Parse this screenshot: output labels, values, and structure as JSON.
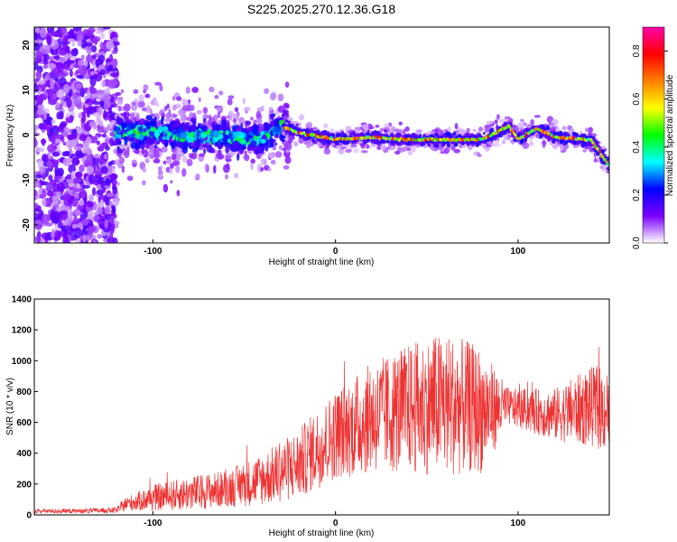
{
  "title": "S225.2025.270.12.36.G18",
  "chart_data": [
    {
      "type": "heatmap",
      "xlabel": "Height of straight line (km)",
      "ylabel": "Frequency (Hz)",
      "xlim": [
        -165,
        150
      ],
      "ylim": [
        -24,
        24
      ],
      "xticks": [
        -100,
        0,
        100
      ],
      "yticks": [
        -20,
        -10,
        0,
        10,
        20
      ],
      "colorbar": {
        "label": "Normalized spectral amplitude",
        "range": [
          0,
          0.9
        ],
        "ticks": [
          0.0,
          0.2,
          0.4,
          0.6,
          0.8
        ],
        "colors": [
          "#ffffff",
          "#7b00ff",
          "#0000ff",
          "#00ffff",
          "#00ff00",
          "#ffff00",
          "#ff7f00",
          "#ff0000",
          "#ff00aa"
        ]
      },
      "ridge": [
        {
          "x": -120,
          "freq": 0.5
        },
        {
          "x": -100,
          "freq": 0.5
        },
        {
          "x": -80,
          "freq": 0.0
        },
        {
          "x": -60,
          "freq": -0.5
        },
        {
          "x": -40,
          "freq": -1.0
        },
        {
          "x": -30,
          "freq": 2.0
        },
        {
          "x": -20,
          "freq": 0.5
        },
        {
          "x": 0,
          "freq": -1.0
        },
        {
          "x": 20,
          "freq": -0.5
        },
        {
          "x": 40,
          "freq": -1.0
        },
        {
          "x": 60,
          "freq": -1.0
        },
        {
          "x": 80,
          "freq": -1.0
        },
        {
          "x": 95,
          "freq": 2.0
        },
        {
          "x": 100,
          "freq": -1.0
        },
        {
          "x": 110,
          "freq": 1.5
        },
        {
          "x": 120,
          "freq": -0.5
        },
        {
          "x": 140,
          "freq": -1.0
        },
        {
          "x": 150,
          "freq": -7.0
        }
      ]
    },
    {
      "type": "line",
      "xlabel": "Height of straight line (km)",
      "ylabel": "SNR (10 * v/v)",
      "xlim": [
        -165,
        150
      ],
      "ylim": [
        0,
        1400
      ],
      "xticks": [
        -100,
        0,
        100
      ],
      "yticks": [
        0,
        200,
        400,
        600,
        800,
        1000,
        1200,
        1400
      ],
      "color": "#ee3333",
      "envelope": {
        "x": [
          -165,
          -140,
          -120,
          -115,
          -100,
          -80,
          -60,
          -40,
          -20,
          -10,
          0,
          20,
          40,
          60,
          80,
          95,
          100,
          120,
          140,
          150
        ],
        "mean": [
          25,
          25,
          30,
          70,
          110,
          140,
          170,
          230,
          330,
          430,
          520,
          630,
          690,
          720,
          680,
          700,
          690,
          650,
          700,
          680
        ],
        "amp": [
          15,
          15,
          20,
          45,
          85,
          110,
          120,
          170,
          230,
          260,
          290,
          360,
          420,
          470,
          410,
          120,
          130,
          170,
          260,
          280
        ]
      }
    }
  ]
}
